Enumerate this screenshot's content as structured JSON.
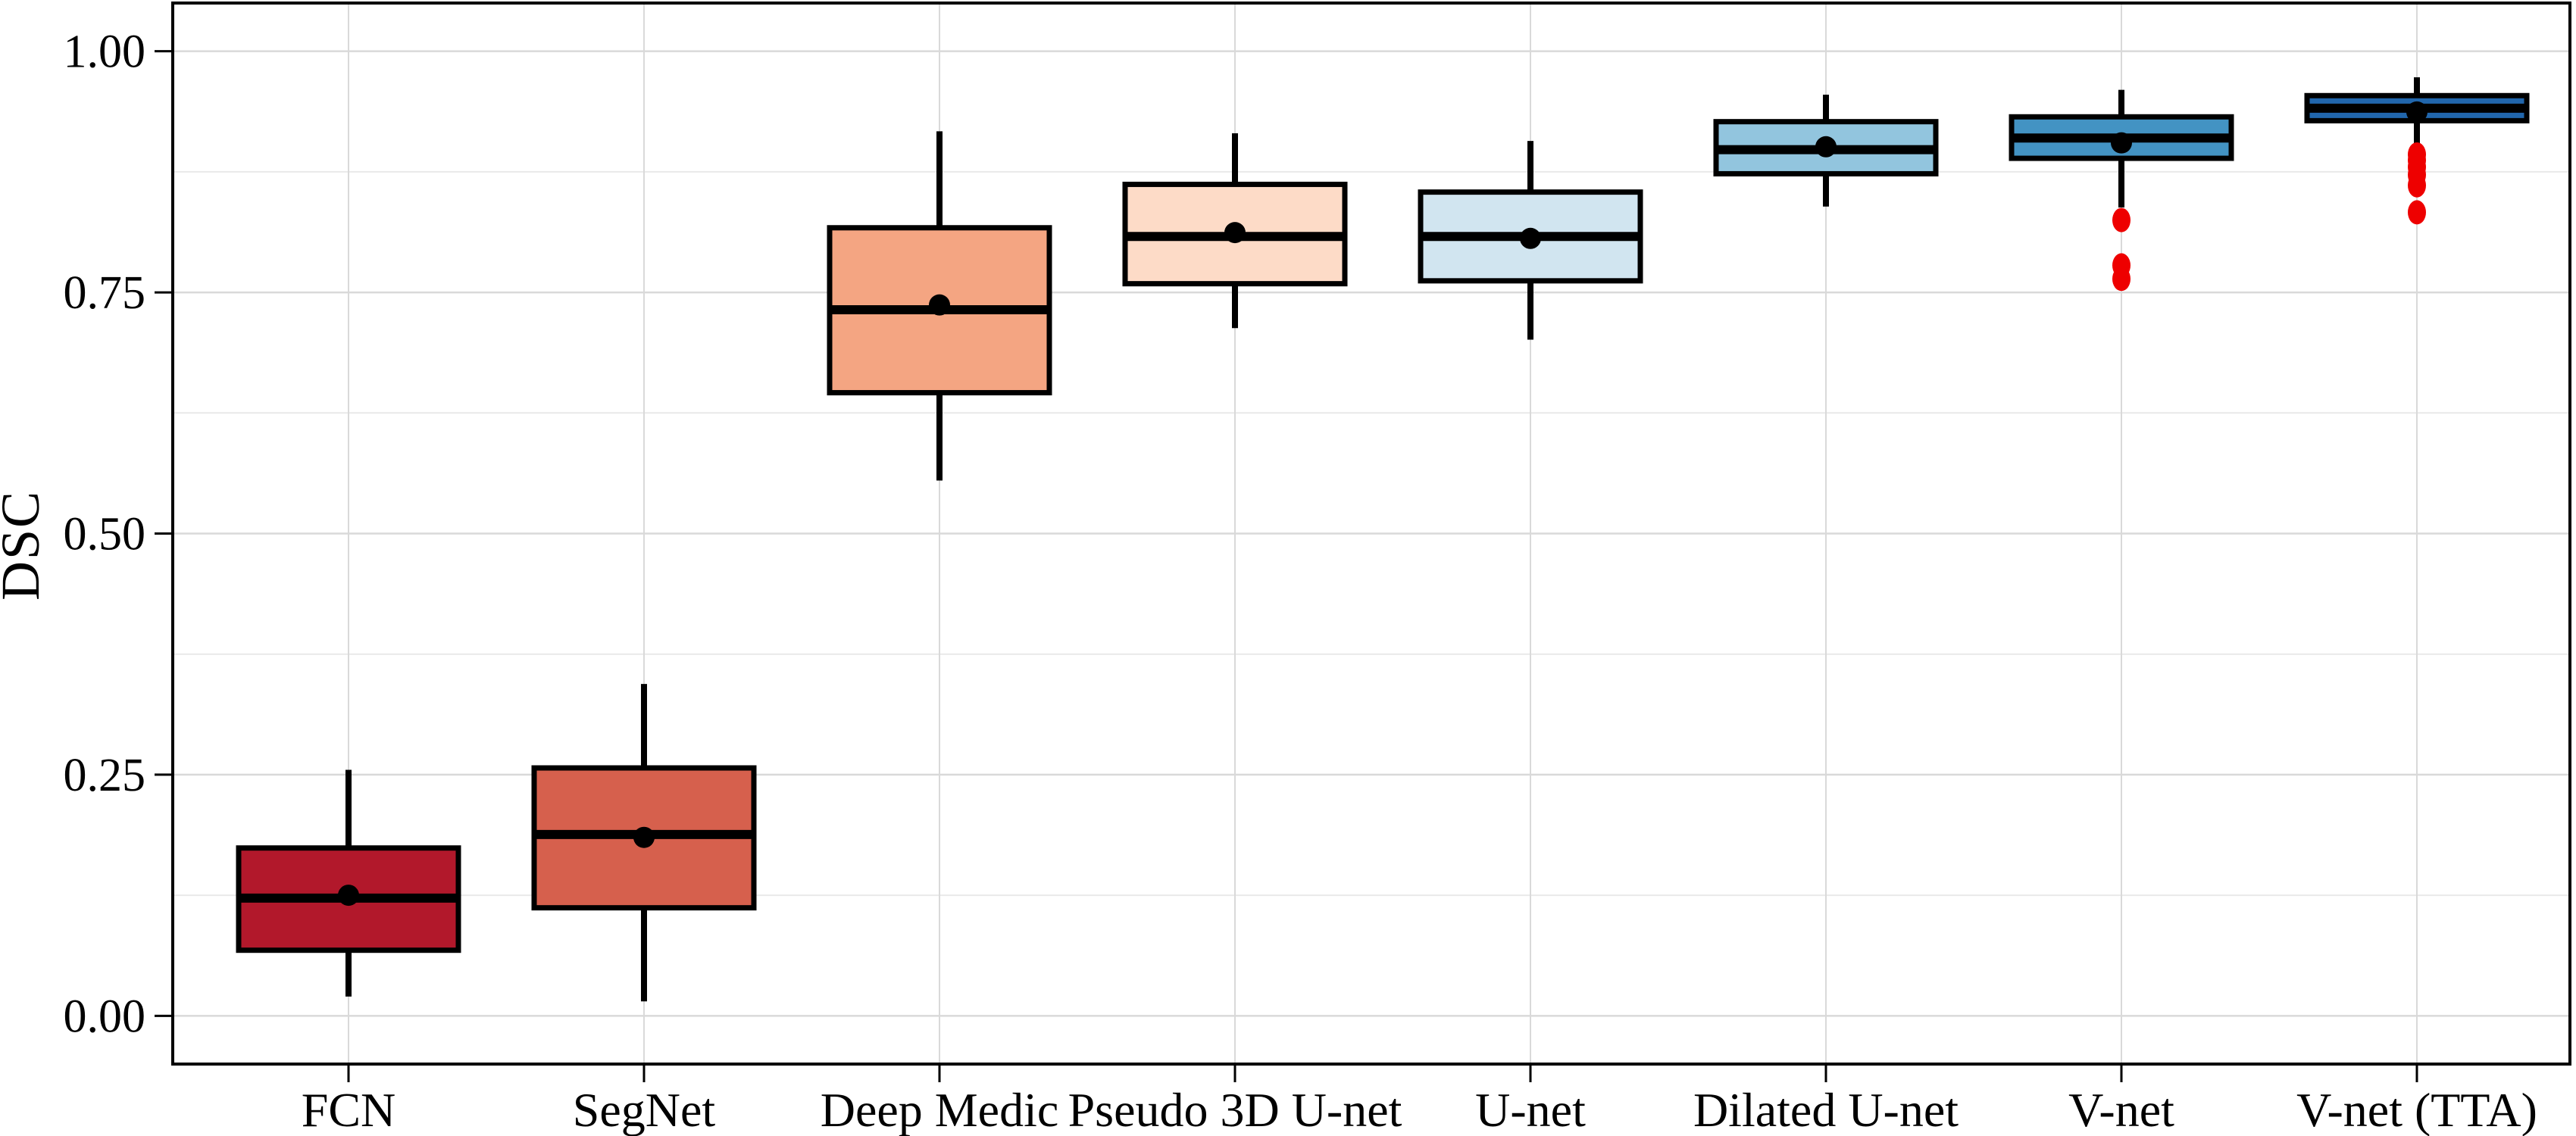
{
  "figure": {
    "kind": "boxplot-figure",
    "background_color": "#ffffff",
    "panel_background": "#ffffff",
    "panel_border_color": "#000000",
    "major_grid_color": "#d9d9d9",
    "minor_grid_color": "#e9e9e9",
    "vertical_grid_color": "#d9d9d9"
  },
  "chart_data": {
    "type": "boxplot",
    "title": "",
    "xlabel": "",
    "ylabel": "DSC",
    "ylim": [
      -0.05,
      1.05
    ],
    "grid": "horizontal major+minor gridlines, vertical gridline at each category center",
    "legend_position": "none",
    "yticks": {
      "values": [
        0.0,
        0.25,
        0.5,
        0.75,
        1.0
      ],
      "labels": [
        "0.00",
        "0.25",
        "0.50",
        "0.75",
        "1.00"
      ]
    },
    "minor_yticks": [
      0.125,
      0.375,
      0.625,
      0.875
    ],
    "outlier_color": "#ee0000",
    "mean_marker_color": "#000000",
    "median_color": "#000000",
    "box_edge_color": "#000000",
    "categories": [
      "FCN",
      "SegNet",
      "Deep Medic",
      "Pseudo 3D U-net",
      "U-net",
      "Dilated U-net",
      "V-net",
      "V-net (TTA)"
    ],
    "series": [
      {
        "name": "FCN",
        "fill": "#b2182b",
        "whisker_low": 0.02,
        "q1": 0.068,
        "median": 0.122,
        "q3": 0.174,
        "whisker_high": 0.255,
        "mean": 0.125,
        "outliers": []
      },
      {
        "name": "SegNet",
        "fill": "#d6604d",
        "whisker_low": 0.015,
        "q1": 0.112,
        "median": 0.188,
        "q3": 0.257,
        "whisker_high": 0.344,
        "mean": 0.185,
        "outliers": []
      },
      {
        "name": "Deep Medic",
        "fill": "#f4a582",
        "whisker_low": 0.555,
        "q1": 0.646,
        "median": 0.732,
        "q3": 0.817,
        "whisker_high": 0.917,
        "mean": 0.737,
        "outliers": []
      },
      {
        "name": "Pseudo 3D U-net",
        "fill": "#fddbc7",
        "whisker_low": 0.713,
        "q1": 0.759,
        "median": 0.808,
        "q3": 0.862,
        "whisker_high": 0.915,
        "mean": 0.812,
        "outliers": []
      },
      {
        "name": "U-net",
        "fill": "#d1e5f0",
        "whisker_low": 0.701,
        "q1": 0.762,
        "median": 0.808,
        "q3": 0.854,
        "whisker_high": 0.907,
        "mean": 0.806,
        "outliers": []
      },
      {
        "name": "Dilated U-net",
        "fill": "#92c5de",
        "whisker_low": 0.839,
        "q1": 0.873,
        "median": 0.898,
        "q3": 0.927,
        "whisker_high": 0.955,
        "mean": 0.901,
        "outliers": []
      },
      {
        "name": "V-net",
        "fill": "#4393c3",
        "whisker_low": 0.838,
        "q1": 0.889,
        "median": 0.91,
        "q3": 0.932,
        "whisker_high": 0.96,
        "mean": 0.905,
        "outliers": [
          0.825,
          0.778,
          0.764
        ]
      },
      {
        "name": "V-net (TTA)",
        "fill": "#2166ac",
        "whisker_low": 0.896,
        "q1": 0.928,
        "median": 0.941,
        "q3": 0.954,
        "whisker_high": 0.973,
        "mean": 0.937,
        "outliers": [
          0.893,
          0.887,
          0.88,
          0.872,
          0.861,
          0.833
        ]
      }
    ]
  }
}
